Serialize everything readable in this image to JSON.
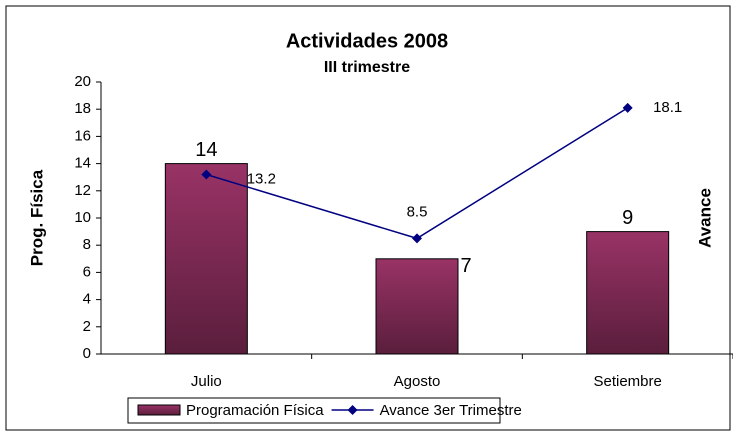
{
  "chart_data": {
    "type": "bar",
    "title": "Actividades 2008",
    "subtitle": "III trimestre",
    "y_label": "Prog. Física",
    "y2_label": "Avance",
    "categories": [
      "Julio",
      "Agosto",
      "Setiembre"
    ],
    "series": [
      {
        "name": "Programación Física",
        "type": "bar",
        "color": "#993366",
        "values": [
          14,
          7,
          9
        ]
      },
      {
        "name": "Avance 3er Trimestre",
        "type": "line",
        "color": "#000080",
        "values": [
          13.2,
          8.5,
          18.1
        ]
      }
    ],
    "ylim": [
      0,
      20
    ],
    "yticks": [
      0,
      2,
      4,
      6,
      8,
      10,
      12,
      14,
      16,
      18,
      20
    ],
    "legend": "bottom"
  }
}
